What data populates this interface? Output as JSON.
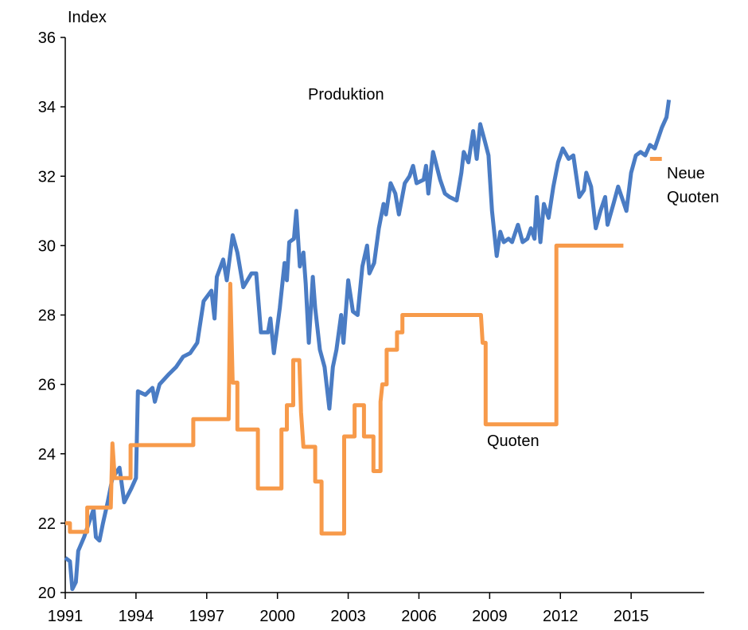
{
  "chart_data": {
    "type": "line",
    "ylabel": "Index",
    "xlim": [
      1991,
      2018.1
    ],
    "xticks": [
      1991,
      1994,
      1997,
      2000,
      2003,
      2006,
      2009,
      2012,
      2015
    ],
    "ylim": [
      20,
      36
    ],
    "yticks": [
      20,
      22,
      24,
      26,
      28,
      30,
      32,
      34,
      36
    ],
    "grid": false,
    "series": [
      {
        "name": "Produktion",
        "color": "#4a7cc4",
        "x": [
          1991.0,
          1991.2,
          1991.3,
          1991.45,
          1991.55,
          1991.8,
          1992.0,
          1992.2,
          1992.3,
          1992.45,
          1992.6,
          1992.8,
          1993.0,
          1993.3,
          1993.5,
          1993.8,
          1994.0,
          1994.08,
          1994.4,
          1994.7,
          1994.8,
          1995.0,
          1995.4,
          1995.7,
          1996.0,
          1996.3,
          1996.6,
          1996.87,
          1997.2,
          1997.33,
          1997.43,
          1997.7,
          1997.85,
          1998.1,
          1998.3,
          1998.55,
          1998.9,
          1999.1,
          1999.3,
          1999.6,
          1999.7,
          1999.85,
          2000.1,
          2000.3,
          2000.4,
          2000.5,
          2000.7,
          2000.8,
          2000.95,
          2001.1,
          2001.2,
          2001.33,
          2001.5,
          2001.6,
          2001.8,
          2002.0,
          2002.2,
          2002.35,
          2002.5,
          2002.7,
          2002.8,
          2003.0,
          2003.2,
          2003.4,
          2003.6,
          2003.8,
          2003.9,
          2004.1,
          2004.3,
          2004.5,
          2004.6,
          2004.8,
          2005.0,
          2005.15,
          2005.4,
          2005.6,
          2005.75,
          2005.9,
          2006.2,
          2006.3,
          2006.4,
          2006.6,
          2006.9,
          2007.1,
          2007.3,
          2007.6,
          2007.8,
          2007.9,
          2008.1,
          2008.3,
          2008.45,
          2008.6,
          2008.8,
          2008.95,
          2009.1,
          2009.3,
          2009.45,
          2009.6,
          2009.8,
          2009.95,
          2010.2,
          2010.4,
          2010.6,
          2010.75,
          2010.9,
          2011.0,
          2011.15,
          2011.3,
          2011.5,
          2011.7,
          2011.9,
          2012.1,
          2012.35,
          2012.55,
          2012.8,
          2013.0,
          2013.1,
          2013.3,
          2013.5,
          2013.7,
          2013.9,
          2014.0,
          2014.25,
          2014.45,
          2014.6,
          2014.8,
          2015.0,
          2015.2,
          2015.4,
          2015.6,
          2015.8,
          2016.0,
          2016.3,
          2016.5,
          2016.6
        ],
        "values": [
          21.0,
          20.9,
          20.1,
          20.3,
          21.2,
          21.6,
          22.0,
          22.4,
          21.6,
          21.5,
          22.0,
          22.6,
          23.3,
          23.6,
          22.6,
          23.0,
          23.3,
          25.8,
          25.7,
          25.9,
          25.5,
          26.0,
          26.3,
          26.5,
          26.8,
          26.9,
          27.2,
          28.4,
          28.7,
          27.9,
          29.1,
          29.6,
          29.0,
          30.3,
          29.8,
          28.8,
          29.2,
          29.2,
          27.5,
          27.5,
          27.9,
          26.9,
          28.2,
          29.5,
          29.0,
          30.1,
          30.2,
          31.0,
          29.4,
          29.8,
          28.9,
          27.2,
          29.1,
          28.2,
          27.0,
          26.5,
          25.3,
          26.5,
          27.0,
          28.0,
          27.2,
          29.0,
          28.1,
          28.0,
          29.4,
          30.0,
          29.2,
          29.5,
          30.5,
          31.2,
          30.9,
          31.8,
          31.5,
          30.9,
          31.8,
          32.0,
          32.3,
          31.8,
          31.9,
          32.3,
          31.5,
          32.7,
          31.9,
          31.5,
          31.4,
          31.3,
          32.1,
          32.7,
          32.4,
          33.3,
          32.5,
          33.5,
          33.0,
          32.6,
          31.0,
          29.7,
          30.4,
          30.1,
          30.2,
          30.1,
          30.6,
          30.1,
          30.2,
          30.5,
          30.2,
          31.4,
          30.1,
          31.2,
          30.8,
          31.7,
          32.4,
          32.8,
          32.5,
          32.6,
          31.4,
          31.6,
          32.1,
          31.7,
          30.5,
          31.0,
          31.4,
          30.6,
          31.2,
          31.7,
          31.4,
          31.0,
          32.1,
          32.6,
          32.7,
          32.6,
          32.9,
          32.8,
          33.4,
          33.7,
          34.2
        ]
      },
      {
        "name": "Quoten",
        "color": "#f79a4a",
        "x": [
          1991.0,
          1991.2,
          1991.2,
          1991.93,
          1991.93,
          1992.93,
          1993.0,
          1993.1,
          1993.77,
          1993.77,
          1996.43,
          1996.43,
          1997.93,
          1998.0,
          1998.1,
          1998.3,
          1998.3,
          1999.17,
          1999.17,
          2000.17,
          2000.17,
          2000.4,
          2000.4,
          2000.67,
          2000.67,
          2000.93,
          2001.0,
          2001.1,
          2001.6,
          2001.6,
          2001.87,
          2001.87,
          2002.83,
          2002.83,
          2003.27,
          2003.27,
          2003.67,
          2003.67,
          2004.07,
          2004.07,
          2004.37,
          2004.37,
          2004.45,
          2004.63,
          2004.63,
          2005.07,
          2005.07,
          2005.3,
          2005.3,
          2008.63,
          2008.7,
          2008.83,
          2008.83,
          2011.83,
          2011.83,
          2014.67
        ],
        "values": [
          22.0,
          22.0,
          21.75,
          21.75,
          22.45,
          22.45,
          24.3,
          23.3,
          23.3,
          24.25,
          24.25,
          25.0,
          25.0,
          28.9,
          26.05,
          26.05,
          24.7,
          24.7,
          23.0,
          23.0,
          24.7,
          24.7,
          25.4,
          25.4,
          26.7,
          26.7,
          25.2,
          24.2,
          24.2,
          23.2,
          23.2,
          21.7,
          21.7,
          24.5,
          24.5,
          25.4,
          25.4,
          24.5,
          24.5,
          23.5,
          23.5,
          25.5,
          26.0,
          26.0,
          27.0,
          27.0,
          27.5,
          27.5,
          28.0,
          28.0,
          27.2,
          27.2,
          24.85,
          24.85,
          30.0,
          30.0
        ]
      },
      {
        "name": "Neue Quoten",
        "color": "#f79a4a",
        "x": [
          2015.8,
          2016.3
        ],
        "values": [
          32.5,
          32.5
        ]
      }
    ]
  }
}
